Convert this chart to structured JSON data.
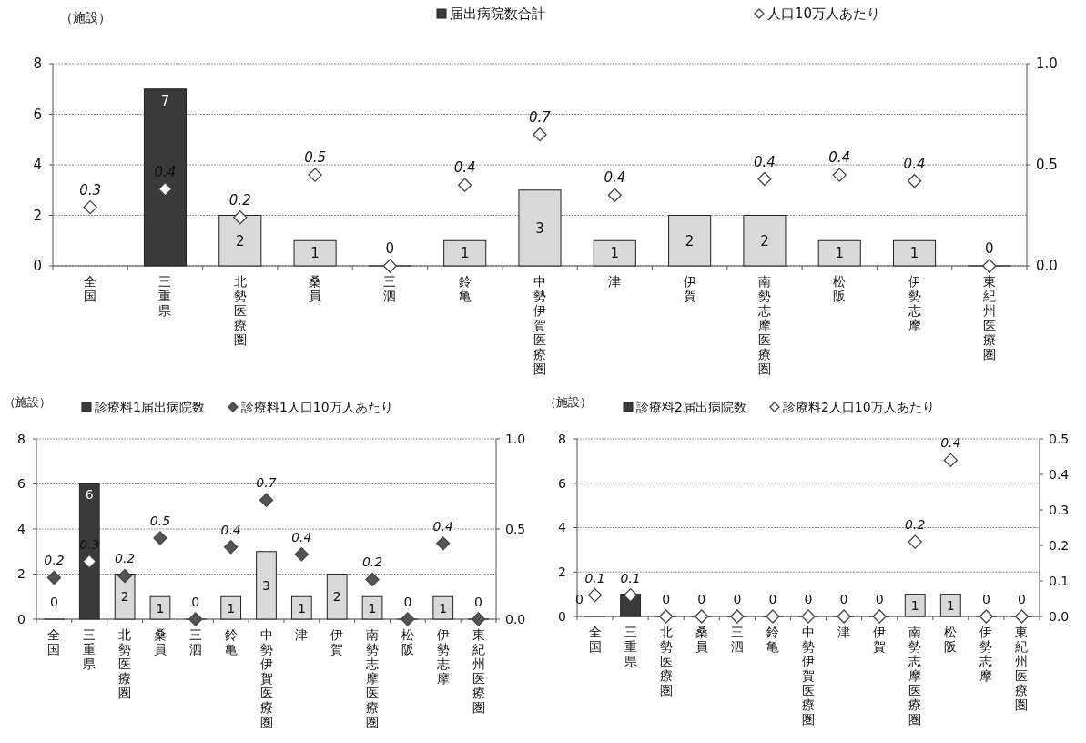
{
  "chart_data": [
    {
      "type": "bar",
      "ylabel": "（施設）",
      "legend": "top",
      "grid": "y",
      "marker": "diamond",
      "categories": [
        "全国",
        "三重県",
        "北勢医療圏",
        "桑員",
        "三泗",
        "鈴亀",
        "中勢伊賀医療圏",
        "津",
        "伊賀",
        "南勢志摩医療圏",
        "松阪",
        "伊勢志摩",
        "東紀州医療圏"
      ],
      "ylim": [
        0,
        8
      ],
      "yticks": [
        0,
        2,
        4,
        6,
        8
      ],
      "y2lim": [
        0,
        1
      ],
      "y2ticks": [
        {
          "value": 0,
          "label": "0.0"
        },
        {
          "value": 0.5,
          "label": "0.5"
        },
        {
          "value": 1,
          "label": "1.0"
        }
      ],
      "series": [
        {
          "name": "届出病院数合計",
          "color": "#3a3a3a",
          "colors": [
            null,
            "#3a3a3a",
            "#d9d9d9",
            "#d9d9d9",
            "#d9d9d9",
            "#d9d9d9",
            "#d9d9d9",
            "#d9d9d9",
            "#d9d9d9",
            "#d9d9d9",
            "#d9d9d9",
            "#d9d9d9",
            "#d9d9d9"
          ],
          "values": [
            null,
            7,
            2,
            1,
            0,
            1,
            3,
            1,
            2,
            2,
            1,
            1,
            0
          ],
          "value_labels": [
            null,
            "7",
            "2",
            "1",
            "0",
            "1",
            "3",
            "1",
            "2",
            "2",
            "1",
            "1",
            "0"
          ]
        },
        {
          "name": "人口10万人あたり",
          "type": "scatter",
          "axis": "y2",
          "color": "#ffffff",
          "values": [
            0.29,
            0.38,
            0.24,
            0.45,
            0,
            0.4,
            0.65,
            0.35,
            null,
            0.43,
            0.45,
            0.42,
            0
          ],
          "value_labels": [
            "0.3",
            "0.4",
            "0.2",
            "0.5",
            null,
            "0.4",
            "0.7",
            "0.4",
            null,
            "0.4",
            "0.4",
            "0.4",
            null
          ]
        }
      ]
    },
    {
      "type": "bar",
      "ylabel": "（施設）",
      "legend": "top",
      "grid": "y",
      "marker": "diamond",
      "categories": [
        "全国",
        "三重県",
        "北勢医療圏",
        "桑員",
        "三泗",
        "鈴亀",
        "中勢伊賀医療圏",
        "津",
        "伊賀",
        "南勢志摩医療圏",
        "松阪",
        "伊勢志摩",
        "東紀州医療圏"
      ],
      "ylim": [
        0,
        8
      ],
      "yticks": [
        0,
        2,
        4,
        6,
        8
      ],
      "y2lim": [
        0,
        1
      ],
      "y2ticks": [
        {
          "value": 0,
          "label": "0.0"
        },
        {
          "value": 0.5,
          "label": "0.5"
        },
        {
          "value": 1,
          "label": "1.0"
        }
      ],
      "series": [
        {
          "name": "診療料1届出病院数",
          "color": "#3a3a3a",
          "colors": [
            "#d9d9d9",
            "#3a3a3a",
            "#d9d9d9",
            "#d9d9d9",
            "#d9d9d9",
            "#d9d9d9",
            "#d9d9d9",
            "#d9d9d9",
            "#d9d9d9",
            "#d9d9d9",
            "#d9d9d9",
            "#d9d9d9",
            "#d9d9d9"
          ],
          "values": [
            0,
            6,
            2,
            1,
            0,
            1,
            3,
            1,
            2,
            1,
            0,
            1,
            0
          ],
          "value_labels": [
            "0",
            "6",
            "2",
            "1",
            "0",
            "1",
            "3",
            "1",
            "2",
            "1",
            "0",
            "1",
            "0"
          ]
        },
        {
          "name": "診療料1人口10万人あたり",
          "type": "scatter",
          "axis": "y2",
          "color": "#555555",
          "colors": [
            "#555555",
            "#ffffff",
            "#555555",
            "#555555",
            "#555555",
            "#555555",
            "#555555",
            "#555555",
            null,
            "#555555",
            "#555555",
            "#555555",
            "#555555"
          ],
          "values": [
            0.23,
            0.32,
            0.24,
            0.45,
            0,
            0.4,
            0.66,
            0.36,
            null,
            0.22,
            0,
            0.42,
            0
          ],
          "value_labels": [
            "0.2",
            "0.3",
            "0.2",
            "0.5",
            null,
            "0.4",
            "0.7",
            "0.4",
            null,
            "0.2",
            null,
            "0.4",
            null
          ]
        }
      ]
    },
    {
      "type": "bar",
      "ylabel": "（施設）",
      "legend": "top",
      "grid": "y",
      "marker": "diamond",
      "categories": [
        "全国",
        "三重県",
        "北勢医療圏",
        "桑員",
        "三泗",
        "鈴亀",
        "中勢伊賀医療圏",
        "津",
        "伊賀",
        "南勢志摩医療圏",
        "松阪",
        "伊勢志摩",
        "東紀州医療圏"
      ],
      "ylim": [
        0,
        8
      ],
      "yticks": [
        0,
        2,
        4,
        6,
        8
      ],
      "y2lim": [
        0,
        0.5
      ],
      "y2ticks": [
        {
          "value": 0,
          "label": "0.0"
        },
        {
          "value": 0.1,
          "label": "0.1"
        },
        {
          "value": 0.2,
          "label": "0.2"
        },
        {
          "value": 0.3,
          "label": "0.3"
        },
        {
          "value": 0.4,
          "label": "0.4"
        },
        {
          "value": 0.5,
          "label": "0.5"
        }
      ],
      "series": [
        {
          "name": "診療料2届出病院数",
          "color": "#3a3a3a",
          "colors": [
            "#d9d9d9",
            "#3a3a3a",
            "#d9d9d9",
            "#d9d9d9",
            "#d9d9d9",
            "#d9d9d9",
            "#d9d9d9",
            "#d9d9d9",
            "#d9d9d9",
            "#d9d9d9",
            "#d9d9d9",
            "#d9d9d9",
            "#d9d9d9"
          ],
          "values": [
            0,
            1,
            0,
            0,
            0,
            0,
            0,
            0,
            0,
            1,
            1,
            0,
            0
          ],
          "value_labels": [
            "0",
            null,
            "0",
            "0",
            "0",
            "0",
            "0",
            "0",
            "0",
            "1",
            "1",
            "0",
            "0"
          ]
        },
        {
          "name": "診療料2人口10万人あたり",
          "type": "scatter",
          "axis": "y2",
          "color": "#ffffff",
          "values": [
            0.06,
            0.06,
            0,
            0,
            0,
            0,
            0,
            0,
            0,
            0.21,
            0.44,
            0,
            0
          ],
          "value_labels": [
            "0.1",
            "0.1",
            null,
            null,
            null,
            null,
            null,
            null,
            null,
            "0.2",
            "0.4",
            null,
            null
          ]
        }
      ]
    }
  ]
}
